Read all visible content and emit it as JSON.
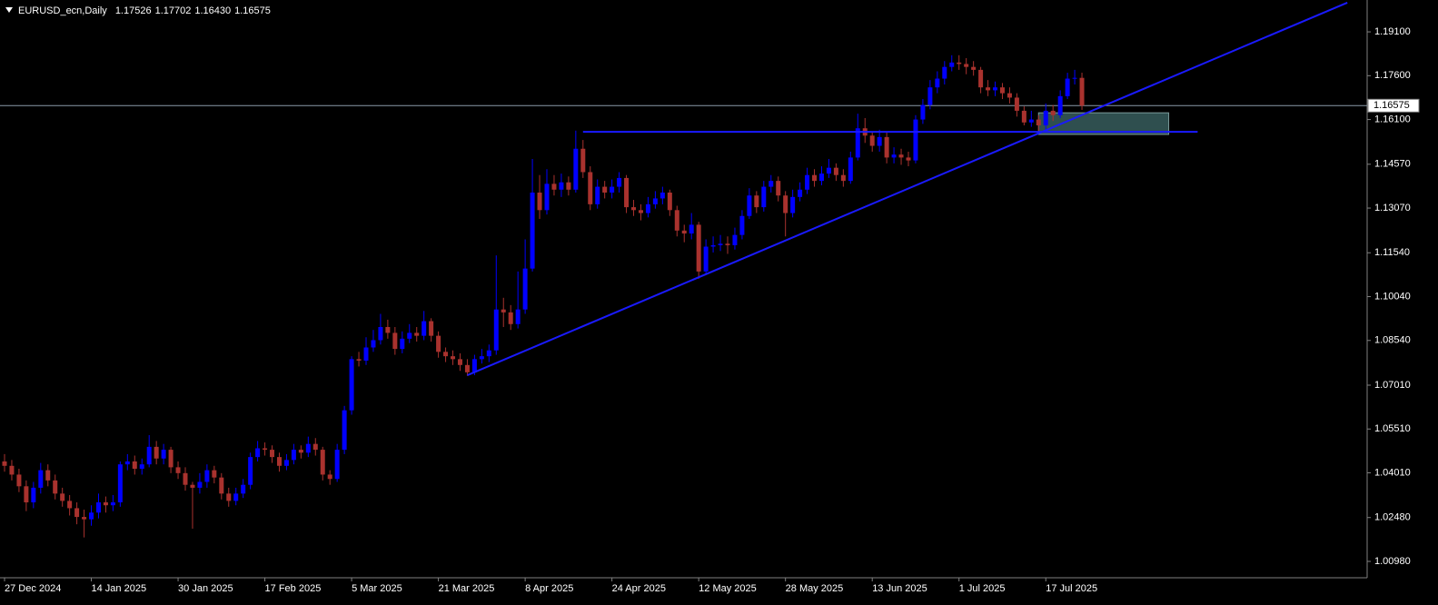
{
  "chart_data": {
    "type": "candlestick",
    "header": {
      "symbol": "EURUSD_ecn,Daily",
      "prices": [
        {
          "value": 1.17526,
          "label": "1.17526"
        },
        {
          "value": 1.17702,
          "label": "1.17702"
        },
        {
          "value": 1.1643,
          "label": "1.16430"
        },
        {
          "value": 1.16575,
          "label": "1.16575"
        }
      ]
    },
    "categories": [
      "27 Dec 2024",
      null,
      null,
      null,
      null,
      null,
      null,
      null,
      null,
      null,
      null,
      null,
      "14 Jan 2025",
      null,
      null,
      null,
      null,
      null,
      null,
      null,
      null,
      null,
      null,
      null,
      "30 Jan 2025",
      null,
      null,
      null,
      null,
      null,
      null,
      null,
      null,
      null,
      null,
      null,
      "17 Feb 2025",
      null,
      null,
      null,
      null,
      null,
      null,
      null,
      null,
      null,
      null,
      null,
      "5 Mar 2025",
      null,
      null,
      null,
      null,
      null,
      null,
      null,
      null,
      null,
      null,
      null,
      "21 Mar 2025",
      null,
      null,
      null,
      null,
      null,
      null,
      null,
      null,
      null,
      null,
      null,
      "8 Apr 2025",
      null,
      null,
      null,
      null,
      null,
      null,
      null,
      null,
      null,
      null,
      null,
      "24 Apr 2025",
      null,
      null,
      null,
      null,
      null,
      null,
      null,
      null,
      null,
      null,
      null,
      "12 May 2025",
      null,
      null,
      null,
      null,
      null,
      null,
      null,
      null,
      null,
      null,
      null,
      "28 May 2025",
      null,
      null,
      null,
      null,
      null,
      null,
      null,
      null,
      null,
      null,
      null,
      "13 Jun 2025",
      null,
      null,
      null,
      null,
      null,
      null,
      null,
      null,
      null,
      null,
      null,
      "1 Jul 2025",
      null,
      null,
      null,
      null,
      null,
      null,
      null,
      null,
      null,
      null,
      null,
      "17 Jul 2025",
      null,
      null,
      null,
      null,
      null
    ],
    "open": [
      1.044,
      1.0425,
      1.0395,
      1.0355,
      1.03,
      1.035,
      1.041,
      1.0375,
      1.033,
      1.0305,
      1.028,
      1.025,
      1.0242,
      1.0265,
      1.03,
      1.029,
      1.03,
      1.043,
      1.044,
      1.0415,
      1.043,
      1.049,
      1.045,
      1.048,
      1.042,
      1.04,
      1.036,
      1.035,
      1.037,
      1.041,
      1.0385,
      1.033,
      1.0305,
      1.033,
      1.036,
      1.0455,
      1.0485,
      1.048,
      1.0455,
      1.0425,
      1.0445,
      1.048,
      1.047,
      1.05,
      1.048,
      1.0395,
      1.038,
      1.048,
      1.0615,
      1.079,
      1.0785,
      1.083,
      1.0855,
      1.09,
      1.088,
      1.0825,
      1.086,
      1.088,
      1.087,
      1.092,
      1.087,
      1.0815,
      1.08,
      1.079,
      1.077,
      1.0745,
      1.079,
      1.08,
      1.082,
      1.096,
      1.095,
      1.091,
      1.096,
      1.11,
      1.136,
      1.13,
      1.139,
      1.137,
      1.1395,
      1.137,
      1.151,
      1.143,
      1.132,
      1.138,
      1.136,
      1.138,
      1.141,
      1.131,
      1.13,
      1.129,
      1.132,
      1.134,
      1.136,
      1.13,
      1.123,
      1.122,
      1.125,
      1.109,
      1.1175,
      1.118,
      1.1185,
      1.118,
      1.1215,
      1.128,
      1.135,
      1.131,
      1.138,
      1.14,
      1.135,
      1.129,
      1.1345,
      1.137,
      1.142,
      1.14,
      1.1425,
      1.1445,
      1.142,
      1.14,
      1.148,
      1.158,
      1.1555,
      1.152,
      1.155,
      1.148,
      1.149,
      1.148,
      1.147,
      1.161,
      1.166,
      1.172,
      1.175,
      1.179,
      1.1805,
      1.18,
      1.179,
      1.178,
      1.172,
      1.171,
      1.172,
      1.17,
      1.1685,
      1.164,
      1.16,
      1.161,
      1.159,
      1.164,
      1.1625,
      1.169,
      1.175,
      1.17526
    ],
    "high": [
      1.0465,
      1.0445,
      1.0415,
      1.0375,
      1.037,
      1.0435,
      1.043,
      1.0395,
      1.035,
      1.0325,
      1.03,
      1.0275,
      1.029,
      1.033,
      1.032,
      1.0325,
      1.044,
      1.0465,
      1.046,
      1.045,
      1.053,
      1.051,
      1.05,
      1.049,
      1.044,
      1.042,
      1.037,
      1.04,
      1.043,
      1.0425,
      1.04,
      1.035,
      1.035,
      1.038,
      1.047,
      1.051,
      1.0505,
      1.0495,
      1.047,
      1.0465,
      1.05,
      1.0495,
      1.0525,
      1.052,
      1.049,
      1.041,
      1.05,
      1.063,
      1.08,
      1.0815,
      1.0865,
      1.089,
      1.0945,
      1.0925,
      1.09,
      1.0885,
      1.091,
      1.09,
      1.0955,
      1.093,
      1.0885,
      1.083,
      1.082,
      1.081,
      1.079,
      1.0805,
      1.0825,
      1.084,
      1.1145,
      1.1,
      1.0975,
      1.109,
      1.12,
      1.1475,
      1.142,
      1.144,
      1.142,
      1.1425,
      1.1415,
      1.1572,
      1.154,
      1.145,
      1.1405,
      1.14,
      1.1405,
      1.143,
      1.142,
      1.1335,
      1.132,
      1.1345,
      1.1365,
      1.138,
      1.137,
      1.1315,
      1.125,
      1.129,
      1.126,
      1.12,
      1.121,
      1.1215,
      1.121,
      1.124,
      1.13,
      1.1375,
      1.1365,
      1.14,
      1.142,
      1.1415,
      1.1365,
      1.137,
      1.1395,
      1.1445,
      1.144,
      1.145,
      1.1475,
      1.146,
      1.144,
      1.15,
      1.163,
      1.1615,
      1.157,
      1.1575,
      1.1565,
      1.1515,
      1.151,
      1.15,
      1.1625,
      1.168,
      1.1745,
      1.1775,
      1.181,
      1.183,
      1.183,
      1.182,
      1.181,
      1.179,
      1.1745,
      1.174,
      1.1735,
      1.172,
      1.17,
      1.1655,
      1.164,
      1.1625,
      1.1665,
      1.166,
      1.171,
      1.177,
      1.178,
      1.17702
    ],
    "low": [
      1.0405,
      1.0375,
      1.0335,
      1.027,
      1.028,
      1.033,
      1.0355,
      1.031,
      1.0285,
      1.0255,
      1.0225,
      1.018,
      1.022,
      1.0245,
      1.0265,
      1.027,
      1.0285,
      1.041,
      1.0395,
      1.0395,
      1.042,
      1.043,
      1.043,
      1.04,
      1.038,
      1.034,
      1.021,
      1.033,
      1.035,
      1.0365,
      1.031,
      1.0285,
      1.029,
      1.0315,
      1.0345,
      1.044,
      1.046,
      1.0435,
      1.0405,
      1.041,
      1.043,
      1.045,
      1.0455,
      1.046,
      1.0375,
      1.036,
      1.037,
      1.0465,
      1.06,
      1.0765,
      1.077,
      1.0815,
      1.084,
      1.086,
      1.0805,
      1.081,
      1.0845,
      1.085,
      1.0855,
      1.085,
      1.0795,
      1.078,
      1.077,
      1.075,
      1.0733,
      1.0735,
      1.0775,
      1.078,
      1.0805,
      1.09,
      1.089,
      1.0895,
      1.0945,
      1.109,
      1.127,
      1.1285,
      1.135,
      1.1345,
      1.135,
      1.136,
      1.141,
      1.13,
      1.1305,
      1.134,
      1.134,
      1.136,
      1.129,
      1.128,
      1.1265,
      1.1275,
      1.1305,
      1.132,
      1.128,
      1.121,
      1.119,
      1.12,
      1.1065,
      1.108,
      1.1155,
      1.116,
      1.115,
      1.1165,
      1.12,
      1.127,
      1.129,
      1.1295,
      1.136,
      1.133,
      1.121,
      1.1275,
      1.133,
      1.1355,
      1.138,
      1.1385,
      1.141,
      1.14,
      1.138,
      1.139,
      1.147,
      1.153,
      1.15,
      1.15,
      1.146,
      1.146,
      1.1455,
      1.145,
      1.146,
      1.1595,
      1.1645,
      1.17,
      1.173,
      1.1775,
      1.178,
      1.1765,
      1.176,
      1.17,
      1.169,
      1.169,
      1.168,
      1.1665,
      1.162,
      1.159,
      1.1585,
      1.156,
      1.1575,
      1.1605,
      1.1615,
      1.168,
      1.173,
      1.1643
    ],
    "close": [
      1.0425,
      1.0395,
      1.0355,
      1.03,
      1.035,
      1.041,
      1.0375,
      1.033,
      1.0305,
      1.028,
      1.025,
      1.0242,
      1.0265,
      1.03,
      1.029,
      1.03,
      1.043,
      1.044,
      1.0415,
      1.043,
      1.049,
      1.045,
      1.048,
      1.042,
      1.04,
      1.036,
      1.035,
      1.037,
      1.041,
      1.0385,
      1.033,
      1.0305,
      1.033,
      1.036,
      1.0455,
      1.0485,
      1.048,
      1.0455,
      1.0425,
      1.0445,
      1.048,
      1.047,
      1.05,
      1.048,
      1.0395,
      1.038,
      1.048,
      1.0615,
      1.079,
      1.0785,
      1.083,
      1.0855,
      1.09,
      1.088,
      1.0825,
      1.086,
      1.088,
      1.087,
      1.092,
      1.087,
      1.0815,
      1.08,
      1.079,
      1.077,
      1.0745,
      1.079,
      1.08,
      1.082,
      1.096,
      1.095,
      1.091,
      1.096,
      1.11,
      1.136,
      1.13,
      1.139,
      1.137,
      1.1395,
      1.137,
      1.151,
      1.143,
      1.132,
      1.138,
      1.136,
      1.138,
      1.141,
      1.131,
      1.13,
      1.129,
      1.132,
      1.134,
      1.136,
      1.13,
      1.123,
      1.122,
      1.125,
      1.109,
      1.1175,
      1.118,
      1.1185,
      1.118,
      1.1215,
      1.128,
      1.135,
      1.131,
      1.138,
      1.14,
      1.135,
      1.129,
      1.1345,
      1.137,
      1.142,
      1.14,
      1.1425,
      1.1445,
      1.142,
      1.14,
      1.148,
      1.158,
      1.1555,
      1.152,
      1.155,
      1.148,
      1.149,
      1.148,
      1.147,
      1.161,
      1.166,
      1.172,
      1.175,
      1.179,
      1.1805,
      1.18,
      1.179,
      1.178,
      1.172,
      1.171,
      1.172,
      1.17,
      1.1685,
      1.164,
      1.16,
      1.161,
      1.159,
      1.164,
      1.1625,
      1.169,
      1.175,
      1.17526,
      1.16575
    ],
    "up_color": "#0000ff",
    "down_color": "#a9322e",
    "ylim": [
      1.0042,
      1.2019
    ],
    "yticks": [
      {
        "value": 1.191,
        "label": "1.19100"
      },
      {
        "value": 1.176,
        "label": "1.17600"
      },
      {
        "value": 1.161,
        "label": "1.16100"
      },
      {
        "value": 1.1457,
        "label": "1.14570"
      },
      {
        "value": 1.1307,
        "label": "1.13070"
      },
      {
        "value": 1.1154,
        "label": "1.11540"
      },
      {
        "value": 1.1004,
        "label": "1.10040"
      },
      {
        "value": 1.0854,
        "label": "1.08540"
      },
      {
        "value": 1.0701,
        "label": "1.07010"
      },
      {
        "value": 1.0551,
        "label": "1.05510"
      },
      {
        "value": 1.0401,
        "label": "1.04010"
      },
      {
        "value": 1.0248,
        "label": "1.02480"
      },
      {
        "value": 1.0098,
        "label": "1.00980"
      }
    ],
    "grid": false,
    "price_line": {
      "value": 1.16575,
      "label": "1.16575"
    },
    "trendlines": [
      {
        "x": [
          64,
          185.7
        ],
        "y": [
          1.0735,
          1.201
        ],
        "color": "#1a1aff"
      },
      {
        "x": [
          80,
          165
        ],
        "y": [
          1.1568,
          1.1568
        ],
        "color": "#1a1aff"
      }
    ],
    "zones": [
      {
        "x": [
          143,
          161
        ],
        "y": [
          1.1559,
          1.1633
        ],
        "color": "#2f4f4f"
      }
    ]
  }
}
